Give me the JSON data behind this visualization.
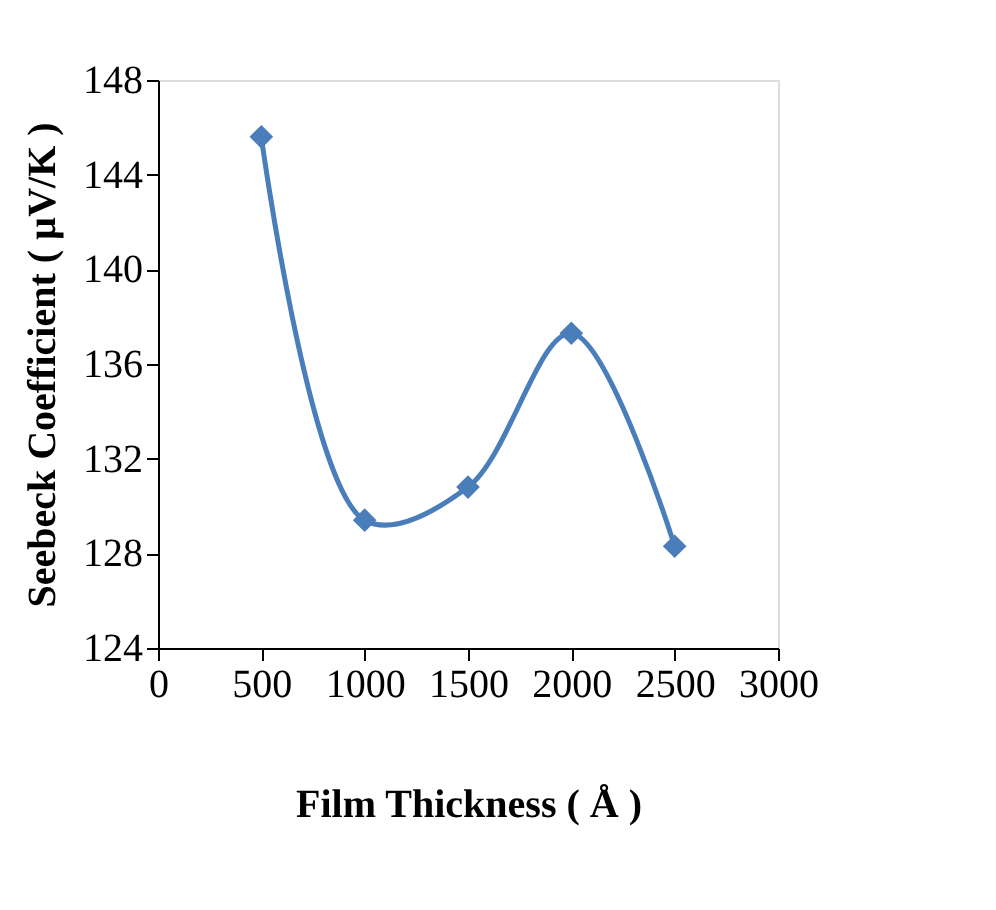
{
  "chart_data": {
    "type": "line",
    "xlabel": "Film Thickness ( Å )",
    "ylabel": "Seebeck Coefficient  ( µV/K )",
    "x": [
      500,
      1000,
      1500,
      2000,
      2500
    ],
    "series": [
      {
        "color": "#4a7ebb",
        "values": [
          145.6,
          129.4,
          130.8,
          137.3,
          128.3
        ]
      }
    ],
    "xlim": [
      0,
      3000
    ],
    "xticks": [
      0,
      500,
      1000,
      1500,
      2000,
      2500,
      3000
    ],
    "ylim": [
      124,
      148
    ],
    "yticks": [
      124,
      128,
      132,
      136,
      140,
      144,
      148
    ],
    "marker": "diamond",
    "line_style": "solid",
    "grid": false,
    "legend": false
  }
}
